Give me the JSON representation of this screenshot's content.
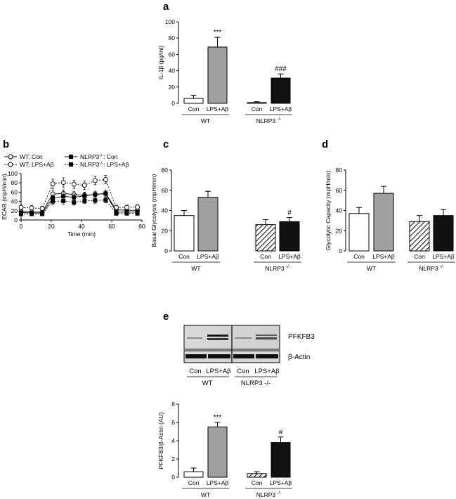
{
  "colors": {
    "con": "#ffffff",
    "lps": "#a0a0a0",
    "nlrp3": "#111111",
    "axis": "#000000"
  },
  "panels": {
    "a": "a",
    "b": "b",
    "c": "c",
    "d": "d",
    "e": "e"
  },
  "chart_data": [
    {
      "panel": "a",
      "type": "bar",
      "ylabel": "IL-1β (pg/ml)",
      "ylim": [
        0,
        100
      ],
      "yticks": [
        "0",
        "20",
        "40",
        "60",
        "80",
        "100"
      ],
      "bar_labels": [
        "Con",
        "LPS+Aβ",
        "Con",
        "LPS+Aβ"
      ],
      "group_labels": [
        "WT",
        "NLRP3 -/-"
      ],
      "series": [
        {
          "name": "WT Con",
          "value": 6,
          "error": 4,
          "fill": "white"
        },
        {
          "name": "WT LPS+Aβ",
          "value": 69,
          "error": 12,
          "fill": "gray",
          "annotation": "***"
        },
        {
          "name": "NLRP3 Con",
          "value": 1,
          "error": 1,
          "fill": "white"
        },
        {
          "name": "NLRP3 LPS+Aβ",
          "value": 31,
          "error": 5,
          "fill": "black",
          "annotation": "###"
        }
      ]
    },
    {
      "panel": "b",
      "type": "line",
      "ylabel": "ECAR (mpH/min)",
      "xlabel": "Time (min)",
      "xlim": [
        0,
        80
      ],
      "ylim": [
        0,
        100
      ],
      "xticks": [
        "0",
        "20",
        "40",
        "60",
        "80"
      ],
      "yticks": [
        "0",
        "20",
        "40",
        "60",
        "80",
        "100"
      ],
      "x": [
        0,
        7,
        14,
        21,
        28,
        35,
        42,
        49,
        56,
        63,
        70,
        77
      ],
      "series": [
        {
          "name": "WT: Con",
          "marker": "open-circle",
          "line": "solid",
          "values": [
            18,
            17,
            17,
            56,
            57,
            55,
            53,
            55,
            57,
            22,
            21,
            21
          ],
          "errors": [
            4,
            4,
            4,
            8,
            8,
            7,
            7,
            7,
            7,
            4,
            4,
            4
          ]
        },
        {
          "name": "WT: LPS+Aβ",
          "marker": "open-circle",
          "line": "dashed",
          "values": [
            27,
            26,
            25,
            78,
            81,
            77,
            75,
            85,
            87,
            27,
            27,
            28
          ],
          "errors": [
            5,
            5,
            5,
            10,
            10,
            9,
            9,
            9,
            9,
            5,
            5,
            5
          ]
        },
        {
          "name": "NLRP3-/-: Con",
          "marker": "filled-square",
          "line": "solid",
          "values": [
            16,
            15,
            15,
            47,
            51,
            49,
            52,
            55,
            57,
            17,
            17,
            17
          ],
          "errors": [
            4,
            4,
            4,
            7,
            7,
            7,
            7,
            7,
            7,
            4,
            4,
            4
          ]
        },
        {
          "name": "NLRP3-/-: LPS+Aβ",
          "marker": "filled-square",
          "line": "dashed",
          "values": [
            13,
            13,
            13,
            40,
            41,
            38,
            41,
            42,
            43,
            14,
            14,
            14
          ],
          "errors": [
            3,
            3,
            3,
            7,
            7,
            6,
            6,
            6,
            6,
            3,
            3,
            3
          ]
        }
      ],
      "legend": [
        {
          "label": "WT: Con",
          "marker": "open-circle",
          "line": "solid"
        },
        {
          "label": "WT: LPS+Aβ",
          "marker": "open-circle",
          "line": "dashed"
        },
        {
          "label": "NLRP3",
          "sup": "-/-",
          "tail": ": Con",
          "marker": "filled-square",
          "line": "solid"
        },
        {
          "label": "NLRP3",
          "sup": "-/-",
          "tail": ": LPS+Aβ",
          "marker": "filled-square",
          "line": "dashed"
        }
      ]
    },
    {
      "panel": "c",
      "type": "bar",
      "ylabel": "Basal Glycolysis (mpH/min)",
      "ylim": [
        0,
        80
      ],
      "yticks": [
        "0",
        "20",
        "40",
        "60",
        "80"
      ],
      "bar_labels": [
        "Con",
        "LPS+Aβ",
        "Con",
        "LPS+Aβ"
      ],
      "group_labels": [
        "WT",
        "NLRP3 -/-"
      ],
      "series": [
        {
          "name": "WT Con",
          "value": 35,
          "error": 5,
          "fill": "white"
        },
        {
          "name": "WT LPS+Aβ",
          "value": 53,
          "error": 6,
          "fill": "gray"
        },
        {
          "name": "NLRP3 Con",
          "value": 26,
          "error": 5,
          "fill": "hatch"
        },
        {
          "name": "NLRP3 LPS+Aβ",
          "value": 29,
          "error": 4,
          "fill": "black",
          "annotation": "#"
        }
      ]
    },
    {
      "panel": "d",
      "type": "bar",
      "ylabel": "Glycolytic Capacity (mpH/min)",
      "ylim": [
        0,
        80
      ],
      "yticks": [
        "0",
        "20",
        "40",
        "60",
        "80"
      ],
      "bar_labels": [
        "Con",
        "LPS+Aβ",
        "Con",
        "LPS+Aβ"
      ],
      "group_labels": [
        "WT",
        "NLRP3 -/-"
      ],
      "series": [
        {
          "name": "WT Con",
          "value": 37,
          "error": 6,
          "fill": "white"
        },
        {
          "name": "WT LPS+Aβ",
          "value": 57,
          "error": 7,
          "fill": "gray"
        },
        {
          "name": "NLRP3 Con",
          "value": 29,
          "error": 6,
          "fill": "hatch"
        },
        {
          "name": "NLRP3 LPS+Aβ",
          "value": 35,
          "error": 6,
          "fill": "black"
        }
      ]
    },
    {
      "panel": "e",
      "type": "bar",
      "ylabel": "PFKFB3/β-Actin (AU)",
      "ylim": [
        0,
        8
      ],
      "yticks": [
        "0",
        "2",
        "4",
        "6",
        "8"
      ],
      "bar_labels": [
        "Con",
        "LPS+Aβ",
        "Con",
        "LPS+Aβ"
      ],
      "group_labels": [
        "WT",
        "NLRP3 -/-"
      ],
      "series": [
        {
          "name": "WT Con",
          "value": 0.6,
          "error": 0.4,
          "fill": "white"
        },
        {
          "name": "WT LPS+Aβ",
          "value": 5.5,
          "error": 0.5,
          "fill": "gray",
          "annotation": "***"
        },
        {
          "name": "NLRP3 Con",
          "value": 0.4,
          "error": 0.2,
          "fill": "hatch"
        },
        {
          "name": "NLRP3 LPS+Aβ",
          "value": 3.8,
          "error": 0.6,
          "fill": "black",
          "annotation": "#"
        }
      ]
    }
  ],
  "blot": {
    "band_labels": [
      "PFKFB3",
      "β-Actin"
    ],
    "lane_labels": [
      "Con",
      "LPS+Aβ",
      "Con",
      "LPS+Aβ"
    ],
    "group_labels": [
      "WT",
      "NLRP3 -/-"
    ]
  }
}
